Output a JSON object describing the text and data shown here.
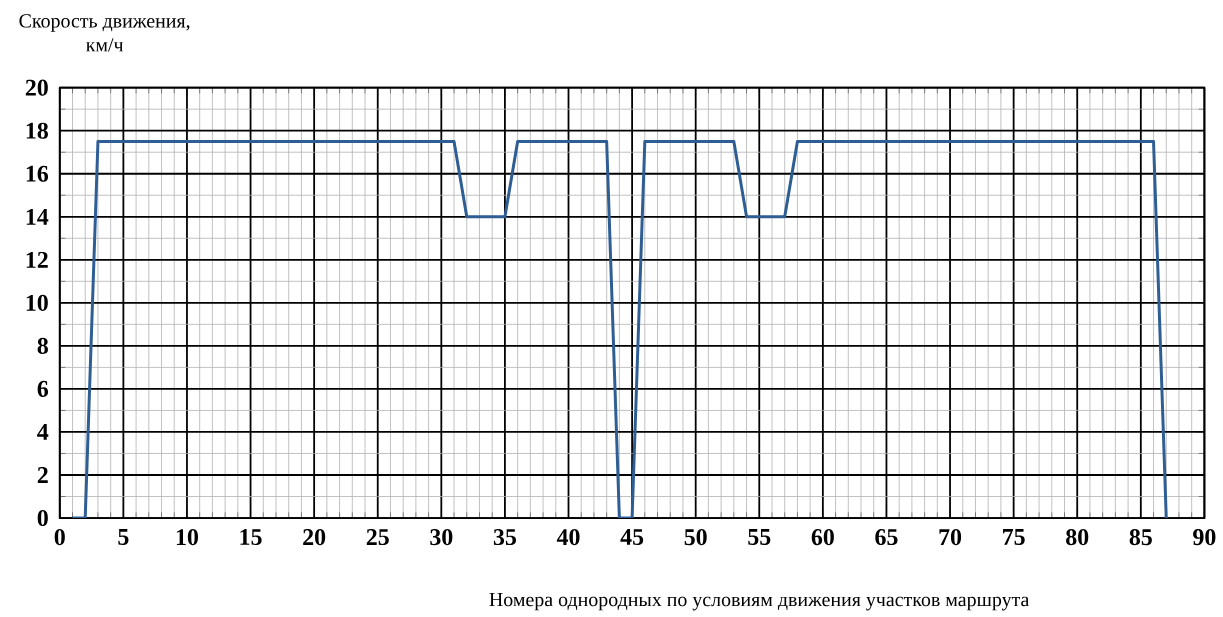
{
  "chart_data": {
    "type": "line",
    "ylabel": "Скорость движения,\nкм/ч",
    "xlabel": "Номера однородных по условиям движения участков маршрута",
    "x": [
      1,
      2,
      3,
      31,
      32,
      35,
      36,
      43,
      44,
      45,
      46,
      53,
      54,
      57,
      58,
      86,
      87
    ],
    "series": [
      {
        "color": "#2e5e93",
        "values": [
          0,
          0,
          17.5,
          17.5,
          14,
          14,
          17.5,
          17.5,
          0,
          0,
          17.5,
          17.5,
          14,
          14,
          17.5,
          17.5,
          0
        ]
      }
    ],
    "xlim": [
      0,
      90
    ],
    "ylim": [
      0,
      20
    ],
    "xticks": [
      0,
      5,
      10,
      15,
      20,
      25,
      30,
      35,
      40,
      45,
      50,
      55,
      60,
      65,
      70,
      75,
      80,
      85,
      90
    ],
    "yticks": [
      0,
      2,
      4,
      6,
      8,
      10,
      12,
      14,
      16,
      18,
      20
    ],
    "grid": true,
    "marker": "none",
    "line_style": "solid"
  }
}
